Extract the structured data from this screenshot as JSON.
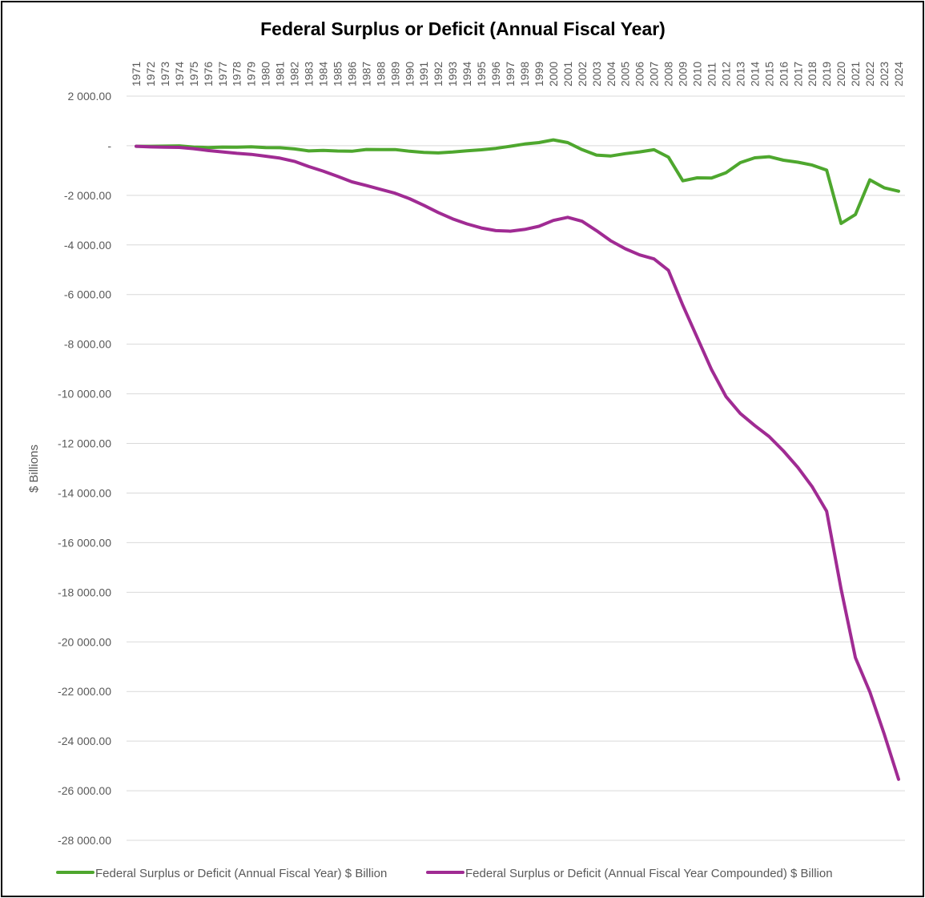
{
  "chart_data": {
    "type": "line",
    "title": "Federal Surplus or Deficit (Annual Fiscal Year)",
    "ylabel": "$ Billions",
    "xlabel": "",
    "ylim": [
      -28000,
      2000
    ],
    "ytick_step": 2000,
    "ytick_labels": [
      "2 000.00",
      "-",
      "-2 000.00",
      "-4 000.00",
      "-6 000.00",
      "-8 000.00",
      "-10 000.00",
      "-12 000.00",
      "-14 000.00",
      "-16 000.00",
      "-18 000.00",
      "-20 000.00",
      "-22 000.00",
      "-24 000.00",
      "-26 000.00",
      "-28 000.00"
    ],
    "ytick_values": [
      2000,
      0,
      -2000,
      -4000,
      -6000,
      -8000,
      -10000,
      -12000,
      -14000,
      -16000,
      -18000,
      -20000,
      -22000,
      -24000,
      -26000,
      -28000
    ],
    "x_axis_position": "top",
    "grid": true,
    "legend_position": "bottom",
    "categories": [
      "1971",
      "1972",
      "1973",
      "1974",
      "1975",
      "1976",
      "1977",
      "1978",
      "1979",
      "1980",
      "1981",
      "1982",
      "1983",
      "1984",
      "1985",
      "1986",
      "1987",
      "1988",
      "1989",
      "1990",
      "1991",
      "1992",
      "1993",
      "1994",
      "1995",
      "1996",
      "1997",
      "1998",
      "1999",
      "2000",
      "2001",
      "2002",
      "2003",
      "2004",
      "2005",
      "2006",
      "2007",
      "2008",
      "2009",
      "2010",
      "2011",
      "2012",
      "2013",
      "2014",
      "2015",
      "2016",
      "2017",
      "2018",
      "2019",
      "2020",
      "2021",
      "2022",
      "2023",
      "2024"
    ],
    "series": [
      {
        "name": "Federal Surplus or Deficit (Annual Fiscal Year) $ Billion",
        "color": "#4ea72e",
        "values": [
          -23,
          -23,
          -15,
          -6,
          -53,
          -74,
          -54,
          -59,
          -41,
          -74,
          -79,
          -128,
          -208,
          -185,
          -212,
          -221,
          -150,
          -155,
          -153,
          -221,
          -269,
          -290,
          -255,
          -203,
          -164,
          -107,
          -22,
          69,
          126,
          236,
          128,
          -158,
          -378,
          -413,
          -318,
          -248,
          -161,
          -459,
          -1413,
          -1294,
          -1300,
          -1087,
          -680,
          -485,
          -442,
          -585,
          -665,
          -779,
          -984,
          -3132,
          -2772,
          -1375,
          -1694,
          -1833
        ]
      },
      {
        "name": "Federal Surplus or Deficit (Annual Fiscal Year Compounded) $ Billion",
        "color": "#a02b93",
        "values": [
          -23,
          -46,
          -61,
          -67,
          -120,
          -194,
          -248,
          -307,
          -348,
          -422,
          -501,
          -629,
          -837,
          -1022,
          -1234,
          -1455,
          -1605,
          -1760,
          -1913,
          -2134,
          -2403,
          -2693,
          -2948,
          -3151,
          -3315,
          -3422,
          -3444,
          -3375,
          -3249,
          -3013,
          -2885,
          -3043,
          -3421,
          -3834,
          -4152,
          -4400,
          -4561,
          -5020,
          -6433,
          -7727,
          -9027,
          -10114,
          -10794,
          -11279,
          -11721,
          -12306,
          -12971,
          -13750,
          -14734,
          -17866,
          -20638,
          -22013,
          -23707,
          -25540
        ]
      }
    ]
  }
}
